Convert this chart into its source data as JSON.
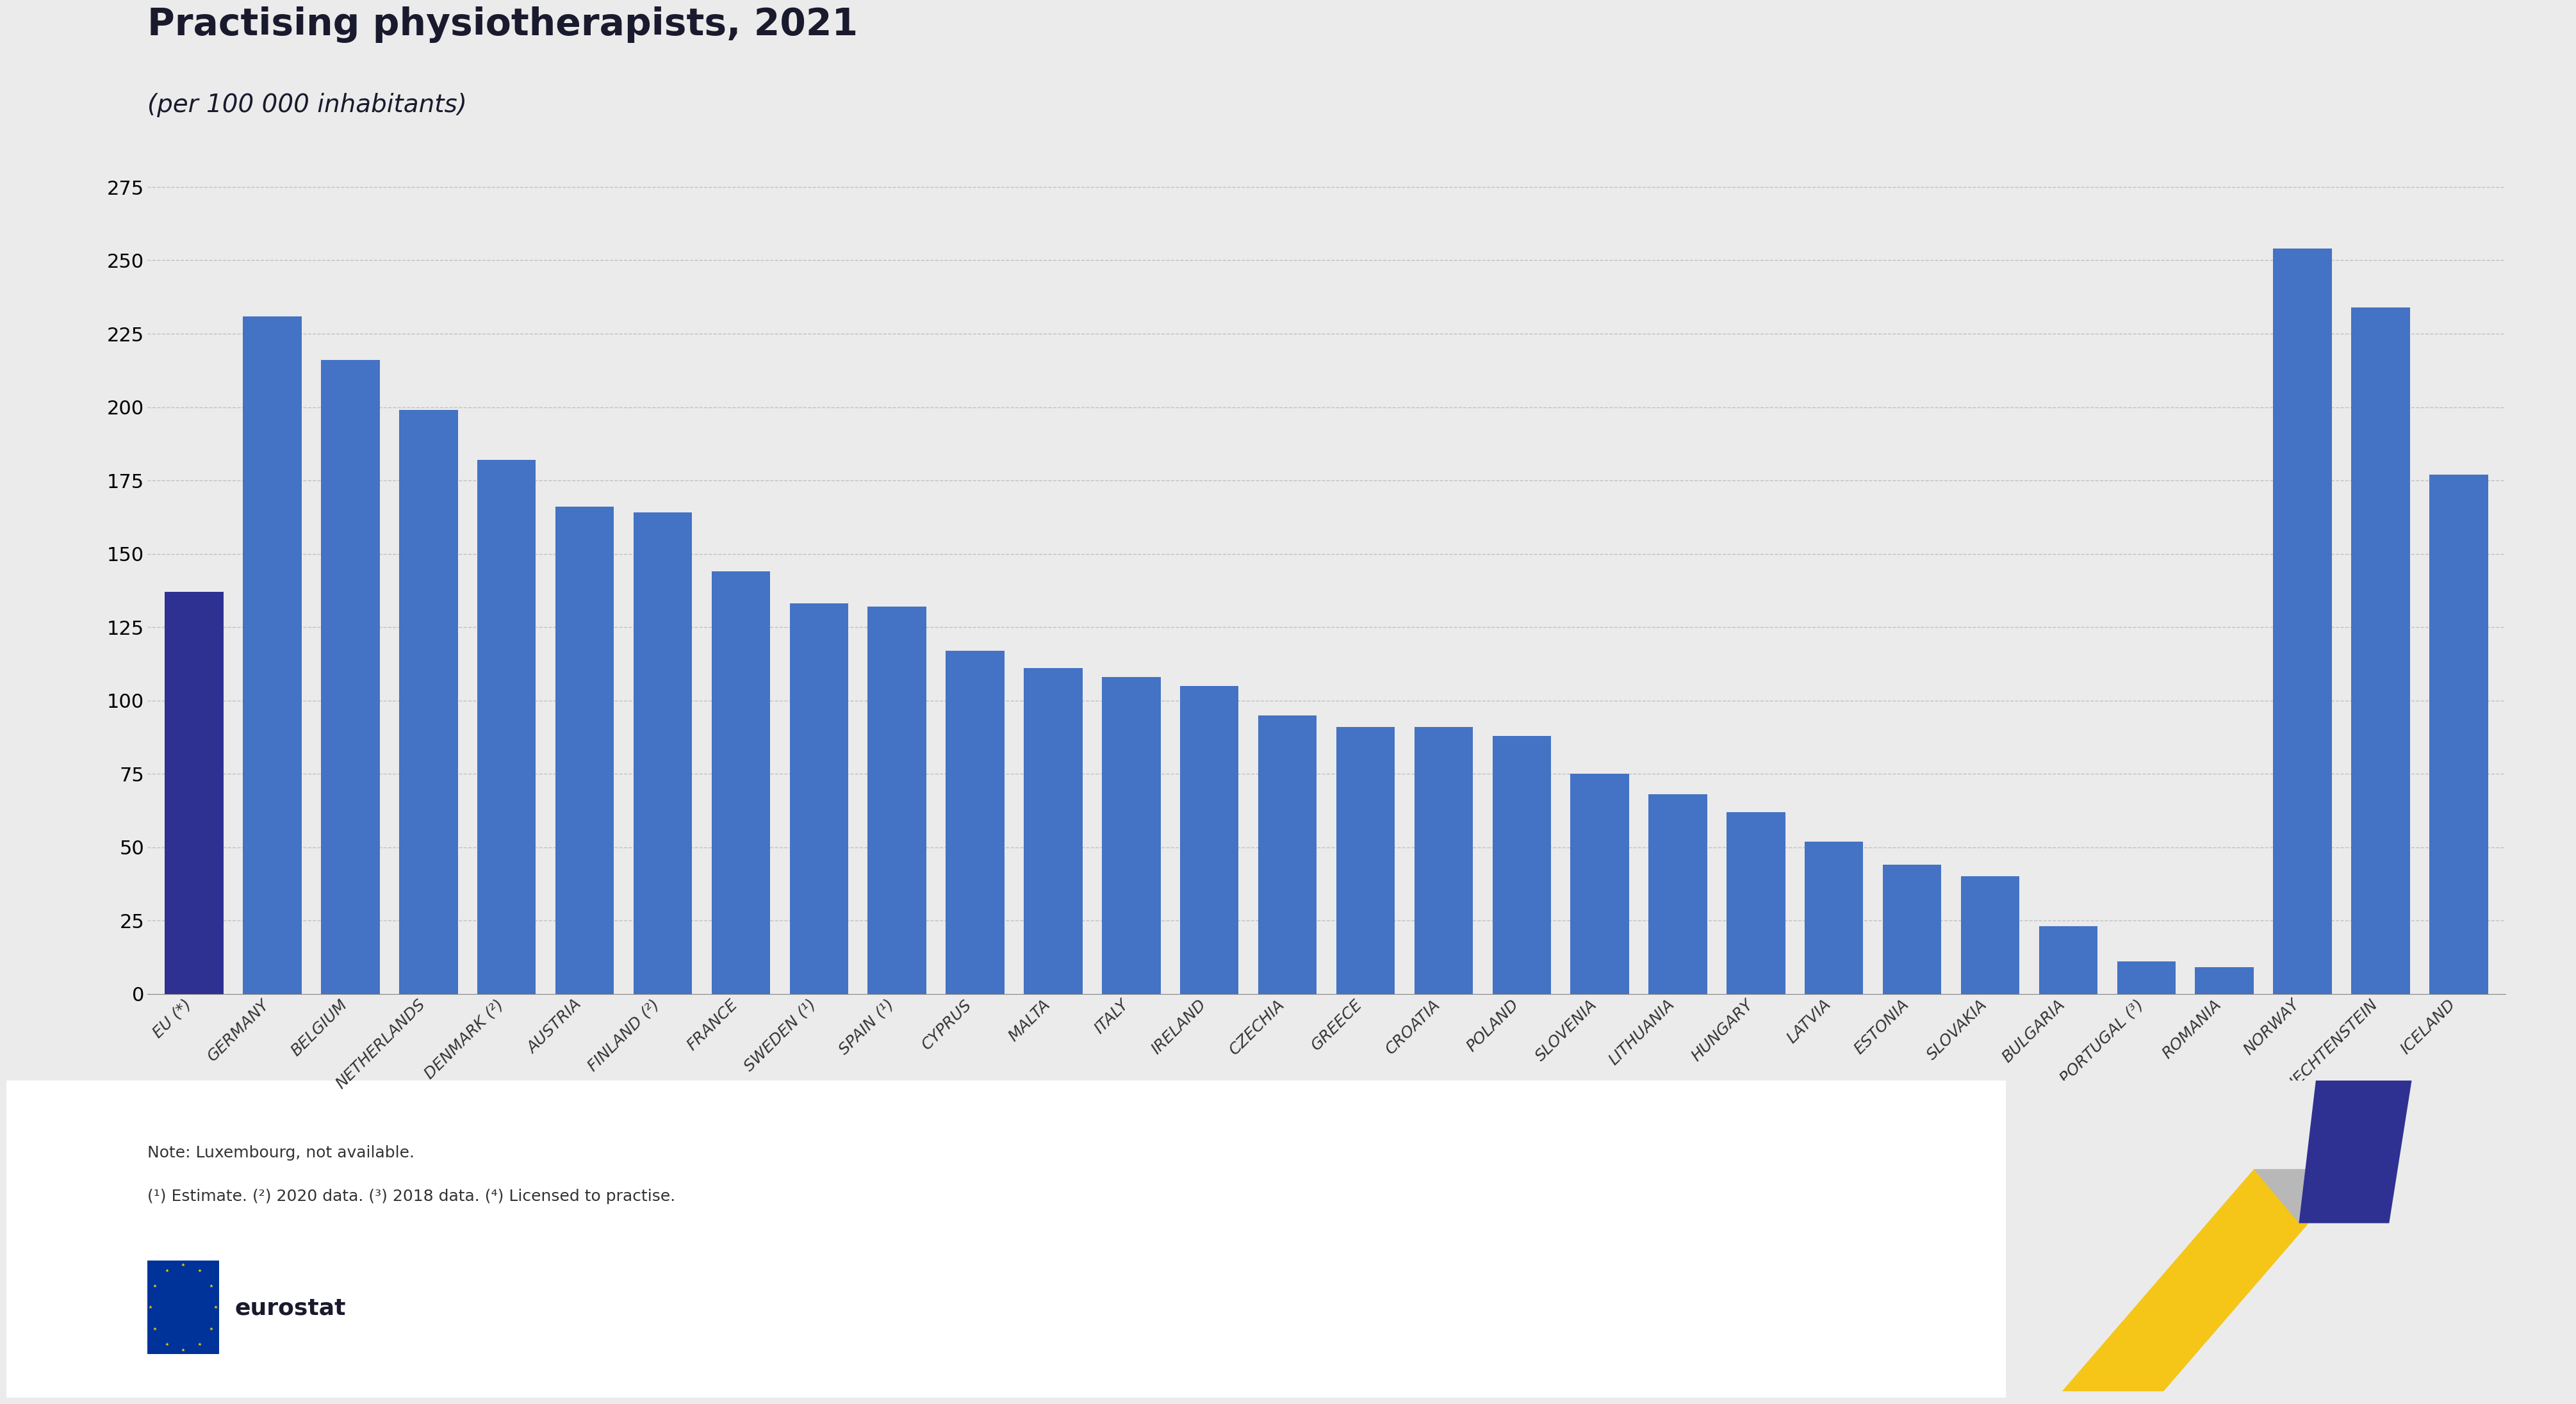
{
  "title": "Practising physiotherapists, 2021",
  "subtitle": "(per 100 000 inhabitants)",
  "background_color": "#ebebeb",
  "plot_bg_color": "#ebebeb",
  "categories": [
    "EU (*)",
    "GERMANY",
    "BELGIUM",
    "NETHERLANDS",
    "DENMARK (²)",
    "AUSTRIA",
    "FINLAND (²)",
    "FRANCE",
    "SWEDEN (¹)",
    "SPAIN (¹)",
    "CYPRUS",
    "MALTA",
    "ITALY",
    "IRELAND",
    "CZECHIA",
    "GREECE",
    "CROATIA",
    "POLAND",
    "SLOVENIA",
    "LITHUANIA",
    "HUNGARY",
    "LATVIA",
    "ESTONIA",
    "SLOVAKIA",
    "BULGARIA",
    "PORTUGAL (³)",
    "ROMANIA",
    "NORWAY",
    "LIECHTENSTEIN",
    "ICELAND"
  ],
  "values": [
    137,
    231,
    216,
    199,
    182,
    166,
    164,
    144,
    133,
    132,
    117,
    111,
    108,
    105,
    95,
    91,
    91,
    88,
    75,
    68,
    62,
    52,
    44,
    40,
    23,
    11,
    9,
    254,
    234,
    177
  ],
  "bar_colors": [
    "#2e3192",
    "#4472c4",
    "#4472c4",
    "#4472c4",
    "#4472c4",
    "#4472c4",
    "#4472c4",
    "#4472c4",
    "#4472c4",
    "#4472c4",
    "#4472c4",
    "#4472c4",
    "#4472c4",
    "#4472c4",
    "#4472c4",
    "#4472c4",
    "#4472c4",
    "#4472c4",
    "#4472c4",
    "#4472c4",
    "#4472c4",
    "#4472c4",
    "#4472c4",
    "#4472c4",
    "#4472c4",
    "#4472c4",
    "#4472c4",
    "#4472c4",
    "#4472c4",
    "#4472c4"
  ],
  "ylim": [
    0,
    285
  ],
  "yticks": [
    0,
    25,
    50,
    75,
    100,
    125,
    150,
    175,
    200,
    225,
    250,
    275
  ],
  "note_line1": "Note: Luxembourg, not available.",
  "note_line2": "(¹) Estimate. (²) 2020 data. (³) 2018 data. (⁴) Licensed to practise.",
  "title_fontsize": 42,
  "subtitle_fontsize": 28,
  "ytick_fontsize": 22,
  "xtick_fontsize": 18,
  "note_fontsize": 18,
  "eurostat_fontsize": 26
}
